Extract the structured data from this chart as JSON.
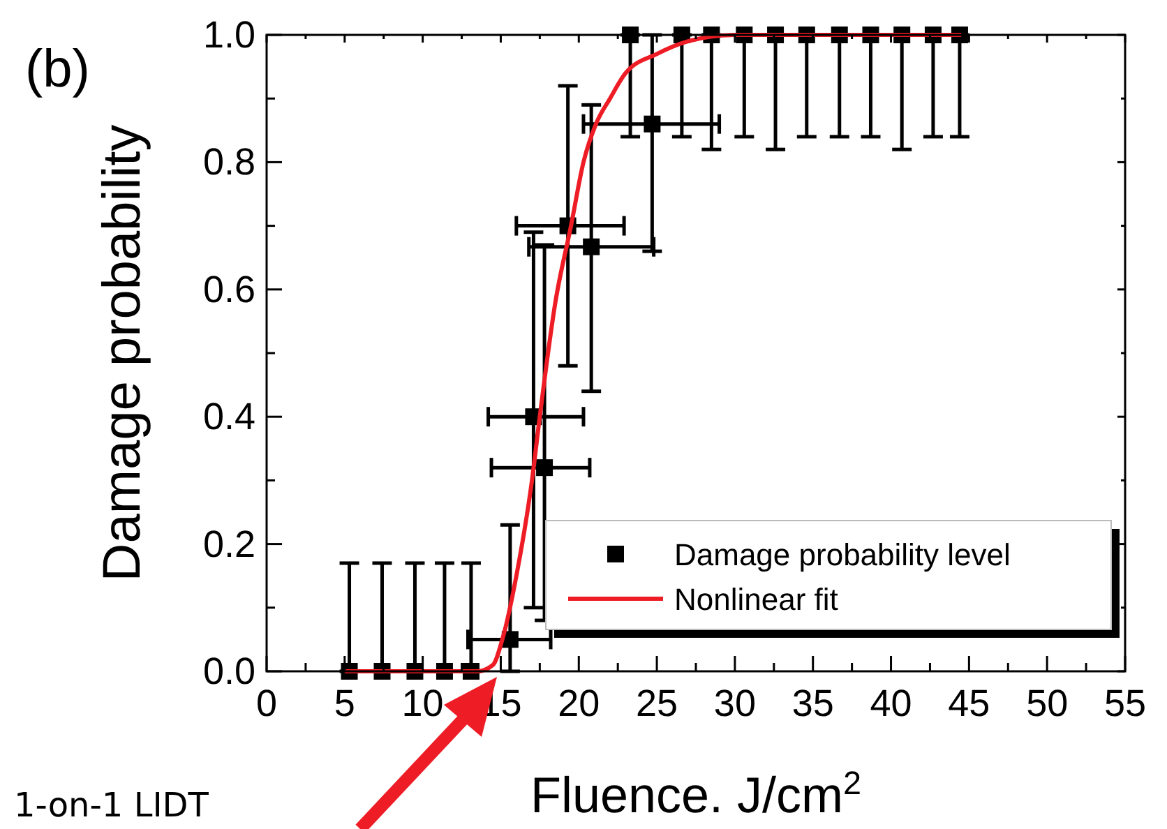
{
  "chart_data": {
    "type": "scatter",
    "title": "(b)",
    "xlabel": "Fluence. J/cm$^{2}$",
    "ylabel": "Damage probability",
    "xlim": [
      0,
      55
    ],
    "ylim": [
      0,
      1
    ],
    "xticks": [
      0,
      {
        "value": 2.5,
        "label": null
      },
      5,
      {
        "value": 7.5,
        "label": null
      },
      10,
      {
        "value": 12.5,
        "label": null
      },
      15,
      {
        "value": 17.5,
        "label": null
      },
      20,
      {
        "value": 22.5,
        "label": null
      },
      25,
      {
        "value": 27.5,
        "label": null
      },
      30,
      {
        "value": 32.5,
        "label": null
      },
      35,
      {
        "value": 37.5,
        "label": null
      },
      40,
      {
        "value": 42.5,
        "label": null
      },
      45,
      {
        "value": 47.5,
        "label": null
      },
      50,
      {
        "value": 52.5,
        "label": null
      },
      55
    ],
    "yticks": [
      {
        "value": 0,
        "label": "0.0"
      },
      {
        "value": 0.1,
        "label": null
      },
      {
        "value": 0.2,
        "label": "0.2"
      },
      {
        "value": 0.3,
        "label": null
      },
      {
        "value": 0.4,
        "label": "0.4"
      },
      {
        "value": 0.5,
        "label": null
      },
      {
        "value": 0.6,
        "label": "0.6"
      },
      {
        "value": 0.7,
        "label": null
      },
      {
        "value": 0.8,
        "label": "0.8"
      },
      {
        "value": 0.9,
        "label": null
      },
      {
        "value": 1,
        "label": "1.0"
      }
    ],
    "grid": false,
    "legend": "bottom right",
    "annotations": [
      "1-on-1 LIDT"
    ],
    "series": [
      {
        "name": "Damage probability level",
        "marker": "square",
        "color": "#000000",
        "x": [
          5.3,
          7.4,
          9.5,
          11.4,
          13.1,
          15.6,
          17.1,
          17.8,
          19.3,
          20.8,
          24.7,
          23.3,
          26.6,
          28.5,
          30.6,
          32.6,
          34.6,
          36.7,
          38.7,
          40.7,
          42.7,
          44.4
        ],
        "values": [
          0,
          0,
          0,
          0,
          0,
          0.05,
          0.4,
          0.32,
          0.7,
          0.667,
          0.86,
          1,
          1,
          1,
          1,
          1,
          1,
          1,
          1,
          1,
          1,
          1
        ],
        "errors": [
          [
            0,
            0.17
          ],
          [
            0,
            0.17
          ],
          [
            0,
            0.17
          ],
          [
            0,
            0.17
          ],
          [
            0,
            0.17
          ],
          [
            0,
            0.23
          ],
          [
            0.1,
            0.69
          ],
          [
            0.08,
            0.67
          ],
          [
            0.48,
            0.92
          ],
          [
            0.44,
            0.89
          ],
          [
            0.66,
            1
          ],
          [
            0.84,
            1
          ],
          [
            0.84,
            1
          ],
          [
            0.82,
            1
          ],
          [
            0.84,
            1
          ],
          [
            0.82,
            1
          ],
          [
            0.84,
            1
          ],
          [
            0.84,
            1
          ],
          [
            0.84,
            1
          ],
          [
            0.82,
            1
          ],
          [
            0.84,
            1
          ],
          [
            0.84,
            1
          ]
        ],
        "xerrors": [
          null,
          null,
          null,
          null,
          null,
          [
            12.9,
            18.2
          ],
          [
            14.2,
            20.3
          ],
          [
            14.4,
            20.7
          ],
          [
            16,
            22.9
          ],
          [
            16.8,
            24.8
          ],
          [
            20.3,
            29
          ],
          null,
          null,
          null,
          null,
          null,
          null,
          null,
          null,
          null,
          null,
          null
        ]
      },
      {
        "name": "Nonlinear fit",
        "type": "line",
        "marker": "none",
        "line_style": "solid",
        "color": "#ee1c25",
        "x": [
          5,
          13.5,
          14.5,
          15.1,
          16,
          17,
          17.5,
          18.5,
          19.5,
          20.3,
          21.1,
          22,
          23,
          25,
          27,
          30,
          44.5
        ],
        "values": [
          0,
          0,
          0.01,
          0.05,
          0.15,
          0.3,
          0.4,
          0.58,
          0.7,
          0.8,
          0.86,
          0.9,
          0.94,
          0.97,
          0.99,
          1,
          1
        ]
      }
    ]
  }
}
